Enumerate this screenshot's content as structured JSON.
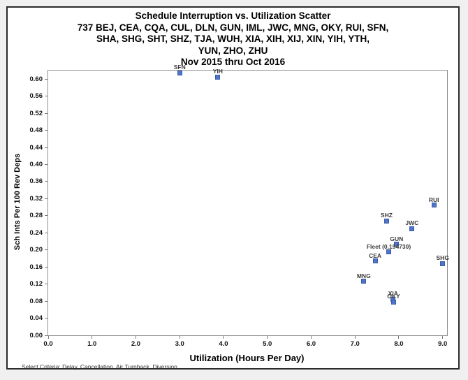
{
  "chart_data": {
    "type": "scatter",
    "title": "Schedule Interruption vs. Utilization Scatter",
    "subtitle_lines": [
      "737 BEJ, CEA, CQA, CUL, DLN, GUN, IML, JWC, MNG, OKY, RUI, SFN,",
      "SHA, SHG, SHT, SHZ, TJA, WUH, XIA, XIH, XIJ, XIN, YIH, YTH,",
      "YUN, ZHO, ZHU"
    ],
    "date_range": "Nov 2015 thru Oct 2016",
    "xlabel": "Utilization (Hours Per Day)",
    "ylabel": "Sch Ints Per 100 Rev Deps",
    "footnote": "Select Criteria: Delay, Cancellation, Air Turnback, Diversion",
    "xlim": [
      0,
      9.1
    ],
    "ylim": [
      0,
      0.62
    ],
    "grid": false,
    "legend": "none",
    "marker_color": "#4f74c9",
    "marker_border_color": "#3a5ca8",
    "x_ticks": [
      {
        "v": 0,
        "label": "0.0"
      },
      {
        "v": 1,
        "label": "1.0"
      },
      {
        "v": 2,
        "label": "2.0"
      },
      {
        "v": 3,
        "label": "3.0"
      },
      {
        "v": 4,
        "label": "4.0"
      },
      {
        "v": 5,
        "label": "5.0"
      },
      {
        "v": 6,
        "label": "6.0"
      },
      {
        "v": 7,
        "label": "7.0"
      },
      {
        "v": 8,
        "label": "8.0"
      },
      {
        "v": 9,
        "label": "9.0"
      }
    ],
    "y_ticks": [
      {
        "v": 0.0,
        "label": "0.00"
      },
      {
        "v": 0.04,
        "label": "0.04"
      },
      {
        "v": 0.08,
        "label": "0.08"
      },
      {
        "v": 0.12,
        "label": "0.12"
      },
      {
        "v": 0.16,
        "label": "0.16"
      },
      {
        "v": 0.2,
        "label": "0.20"
      },
      {
        "v": 0.24,
        "label": "0.24"
      },
      {
        "v": 0.28,
        "label": "0.28"
      },
      {
        "v": 0.32,
        "label": "0.32"
      },
      {
        "v": 0.36,
        "label": "0.36"
      },
      {
        "v": 0.4,
        "label": "0.40"
      },
      {
        "v": 0.44,
        "label": "0.44"
      },
      {
        "v": 0.48,
        "label": "0.48"
      },
      {
        "v": 0.52,
        "label": "0.52"
      },
      {
        "v": 0.56,
        "label": "0.56"
      },
      {
        "v": 0.6,
        "label": "0.60"
      }
    ],
    "points": [
      {
        "label": "SFN",
        "x": 3.0,
        "y": 0.615
      },
      {
        "label": "YIH",
        "x": 3.87,
        "y": 0.605
      },
      {
        "label": "RUI",
        "x": 8.8,
        "y": 0.305
      },
      {
        "label": "SHZ",
        "x": 7.72,
        "y": 0.268
      },
      {
        "label": "JWC",
        "x": 8.3,
        "y": 0.25
      },
      {
        "label": "GUN",
        "x": 7.95,
        "y": 0.213
      },
      {
        "label": "Fleet (0.194730)",
        "x": 7.77,
        "y": 0.195
      },
      {
        "label": "CEA",
        "x": 7.46,
        "y": 0.174
      },
      {
        "label": "SHG",
        "x": 9.0,
        "y": 0.168
      },
      {
        "label": "MNG",
        "x": 7.2,
        "y": 0.126
      },
      {
        "label": "XIA",
        "x": 7.87,
        "y": 0.085
      },
      {
        "label": "OKY",
        "x": 7.88,
        "y": 0.078
      }
    ]
  }
}
